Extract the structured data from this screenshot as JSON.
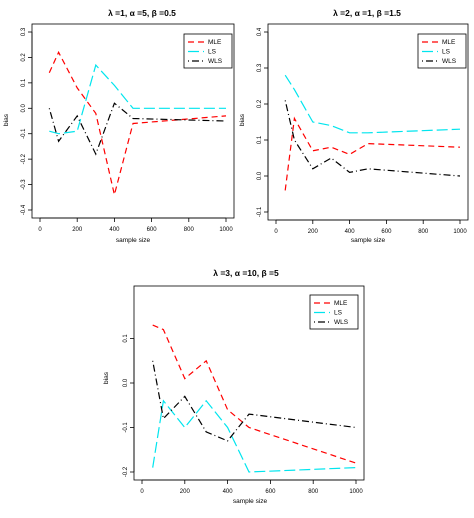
{
  "colors": {
    "MLE": "#ff0000",
    "LS": "#00e5ee",
    "WLS": "#000000"
  },
  "chart_data": [
    {
      "type": "line",
      "title": "λ =1, α =5, β =0.5",
      "xlabel": "sample size",
      "ylabel": "bias",
      "xlim": [
        0,
        1000
      ],
      "ylim": [
        -0.4,
        0.3
      ],
      "xticks": [
        0,
        200,
        400,
        600,
        800,
        1000
      ],
      "xtick_labels": [
        "0",
        "200",
        "400",
        "600",
        "800",
        "1000"
      ],
      "yticks": [
        -0.4,
        -0.3,
        -0.2,
        -0.1,
        0.0,
        0.1,
        0.2,
        0.3
      ],
      "ytick_labels": [
        "-0.4",
        "-0.3",
        "-0.2",
        "-0.1",
        "0.0",
        "0.1",
        "0.2",
        "0.3"
      ],
      "legend_position": "top-right",
      "x": [
        50,
        100,
        200,
        300,
        400,
        500,
        1000
      ],
      "series": [
        {
          "name": "MLE",
          "style": "dashed",
          "values": [
            0.14,
            0.22,
            0.08,
            -0.02,
            -0.34,
            -0.06,
            -0.03
          ]
        },
        {
          "name": "LS",
          "style": "longdash",
          "values": [
            -0.09,
            -0.1,
            -0.09,
            0.17,
            0.09,
            0.0,
            0.0
          ]
        },
        {
          "name": "WLS",
          "style": "dotdash",
          "values": [
            0.0,
            -0.13,
            -0.03,
            -0.18,
            0.02,
            -0.04,
            -0.05
          ]
        }
      ]
    },
    {
      "type": "line",
      "title": "λ =2, α =1, β =1.5",
      "xlabel": "sample size",
      "ylabel": "bias",
      "xlim": [
        0,
        1000
      ],
      "ylim": [
        -0.1,
        0.4
      ],
      "xticks": [
        0,
        200,
        400,
        600,
        800,
        1000
      ],
      "xtick_labels": [
        "0",
        "200",
        "400",
        "600",
        "800",
        "1000"
      ],
      "yticks": [
        -0.1,
        0.0,
        0.1,
        0.2,
        0.3,
        0.4
      ],
      "ytick_labels": [
        "-0.1",
        "0.0",
        "0.1",
        "0.2",
        "0.3",
        "0.4"
      ],
      "legend_position": "top-right",
      "x": [
        50,
        100,
        200,
        300,
        400,
        500,
        1000
      ],
      "series": [
        {
          "name": "MLE",
          "style": "dashed",
          "values": [
            -0.04,
            0.16,
            0.07,
            0.08,
            0.06,
            0.09,
            0.08
          ]
        },
        {
          "name": "LS",
          "style": "longdash",
          "values": [
            0.28,
            0.24,
            0.15,
            0.14,
            0.12,
            0.12,
            0.13
          ]
        },
        {
          "name": "WLS",
          "style": "dotdash",
          "values": [
            0.21,
            0.1,
            0.02,
            0.05,
            0.01,
            0.02,
            0.0
          ]
        }
      ]
    },
    {
      "type": "line",
      "title": "λ =3, α =10, β =5",
      "xlabel": "sample size",
      "ylabel": "bias",
      "xlim": [
        0,
        1000
      ],
      "ylim": [
        -0.2,
        0.2
      ],
      "xticks": [
        0,
        200,
        400,
        600,
        800,
        1000
      ],
      "xtick_labels": [
        "0",
        "200",
        "400",
        "600",
        "800",
        "1000"
      ],
      "yticks": [
        -0.2,
        -0.1,
        0.0,
        0.1
      ],
      "ytick_labels": [
        "-0.2",
        "-0.1",
        "0.0",
        "0.1"
      ],
      "legend_position": "top-right",
      "x": [
        50,
        100,
        200,
        300,
        400,
        500,
        1000
      ],
      "series": [
        {
          "name": "MLE",
          "style": "dashed",
          "values": [
            0.13,
            0.12,
            0.01,
            0.05,
            -0.06,
            -0.1,
            -0.18
          ]
        },
        {
          "name": "LS",
          "style": "longdash",
          "values": [
            -0.19,
            -0.04,
            -0.1,
            -0.04,
            -0.1,
            -0.2,
            -0.19
          ]
        },
        {
          "name": "WLS",
          "style": "dotdash",
          "values": [
            0.05,
            -0.08,
            -0.03,
            -0.11,
            -0.13,
            -0.07,
            -0.1
          ]
        }
      ]
    }
  ]
}
